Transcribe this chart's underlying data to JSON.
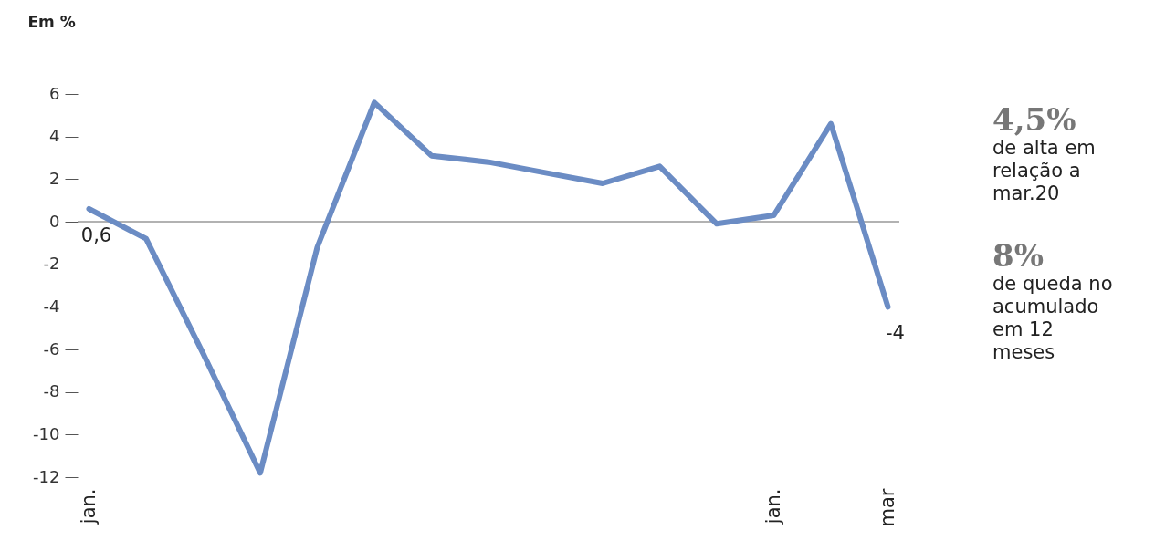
{
  "chart_data": {
    "type": "line",
    "ylabel": "Em %",
    "categories": [
      "jan.",
      null,
      null,
      null,
      null,
      null,
      null,
      null,
      null,
      null,
      null,
      null,
      "jan.",
      null,
      "mar"
    ],
    "series": [
      {
        "color": "#6b8cc4",
        "values": [
          0.6,
          -0.8,
          -6.2,
          -11.8,
          -1.2,
          5.6,
          3.1,
          2.8,
          2.3,
          1.8,
          2.6,
          -0.1,
          0.3,
          4.6,
          -4
        ]
      }
    ],
    "value_labels": [
      "0,6",
      null,
      null,
      null,
      null,
      null,
      null,
      null,
      null,
      null,
      null,
      null,
      null,
      null,
      "-4"
    ],
    "ylim": [
      -12,
      6
    ],
    "yticks": [
      -12,
      -10,
      -8,
      -6,
      -4,
      -2,
      0,
      2,
      4,
      6
    ],
    "ref_lines": [
      {
        "axis": "y",
        "value": 0,
        "color": "#999999"
      }
    ],
    "grid": false,
    "marker": "none",
    "line_style": "solid",
    "annotations": [
      "4,5%",
      "de alta em relação a mar.20",
      "8%",
      "de queda no acumulado em 12 meses"
    ]
  }
}
